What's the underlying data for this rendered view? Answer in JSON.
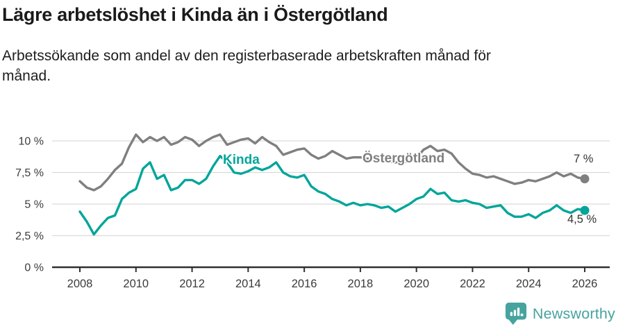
{
  "header": {
    "title": "Lägre arbetslöshet i Kinda än i Östergötland",
    "subtitle_line1": "Arbetssökande som andel av den registerbaserade arbetskraften månad för",
    "subtitle_line2": "månad."
  },
  "chart_data": {
    "type": "line",
    "title": "Lägre arbetslöshet i Kinda än i Östergötland",
    "xlabel": "",
    "ylabel": "",
    "grid": true,
    "legend_position": "inline-labels",
    "x_start": 2008,
    "x_step": 0.25,
    "xlim": [
      2007,
      2026.9
    ],
    "ylim": [
      0,
      11
    ],
    "x_tick_labels": [
      "2008",
      "2010",
      "2012",
      "2014",
      "2016",
      "2018",
      "2020",
      "2022",
      "2024",
      "2026"
    ],
    "x_tick_values": [
      2008,
      2010,
      2012,
      2014,
      2016,
      2018,
      2020,
      2022,
      2024,
      2026
    ],
    "y_tick_labels": [
      "0 %",
      "2,5 %",
      "5 %",
      "7,5 %",
      "10 %"
    ],
    "y_tick_values": [
      0,
      2.5,
      5,
      7.5,
      10
    ],
    "series": [
      {
        "name": "Östergötland",
        "color": "#7f7f7f",
        "end_label": "7 %",
        "values": [
          6.8,
          6.3,
          6.1,
          6.4,
          7.0,
          7.7,
          8.2,
          9.5,
          10.5,
          9.9,
          10.3,
          10.0,
          10.3,
          9.7,
          9.9,
          10.3,
          10.1,
          9.6,
          10.0,
          10.3,
          10.5,
          9.7,
          9.9,
          10.1,
          10.2,
          9.8,
          10.3,
          9.9,
          9.6,
          8.9,
          9.1,
          9.3,
          9.4,
          8.9,
          8.6,
          8.8,
          9.2,
          8.9,
          8.6,
          8.7,
          8.7,
          8.6,
          8.5,
          8.4,
          8.4,
          8.3,
          8.3,
          8.4,
          8.6,
          9.3,
          9.6,
          9.2,
          9.3,
          9.0,
          8.3,
          7.8,
          7.4,
          7.3,
          7.1,
          7.2,
          7.0,
          6.8,
          6.6,
          6.7,
          6.9,
          6.8,
          7.0,
          7.2,
          7.5,
          7.2,
          7.4,
          7.1,
          7.0
        ]
      },
      {
        "name": "Kinda",
        "color": "#00a59a",
        "end_label": "4,5 %",
        "values": [
          4.4,
          3.6,
          2.6,
          3.3,
          3.9,
          4.1,
          5.4,
          5.9,
          6.2,
          7.8,
          8.3,
          7.0,
          7.3,
          6.1,
          6.3,
          6.9,
          6.9,
          6.6,
          7.0,
          8.0,
          8.8,
          8.3,
          7.5,
          7.4,
          7.6,
          7.9,
          7.7,
          7.9,
          8.3,
          7.5,
          7.2,
          7.1,
          7.3,
          6.4,
          6.0,
          5.8,
          5.4,
          5.2,
          4.9,
          5.1,
          4.9,
          5.0,
          4.9,
          4.7,
          4.8,
          4.4,
          4.7,
          5.0,
          5.4,
          5.6,
          6.2,
          5.8,
          5.9,
          5.3,
          5.2,
          5.3,
          5.1,
          5.0,
          4.7,
          4.8,
          4.9,
          4.3,
          4.0,
          4.0,
          4.2,
          3.9,
          4.3,
          4.5,
          4.9,
          4.5,
          4.3,
          4.6,
          4.5
        ]
      }
    ],
    "colors": {
      "grid": "#d9d9d9",
      "axis": "#2f2f2f",
      "tick_text": "#3b3b3b",
      "brand": "#46a39e"
    }
  },
  "footer": {
    "brand": "Newsworthy"
  }
}
